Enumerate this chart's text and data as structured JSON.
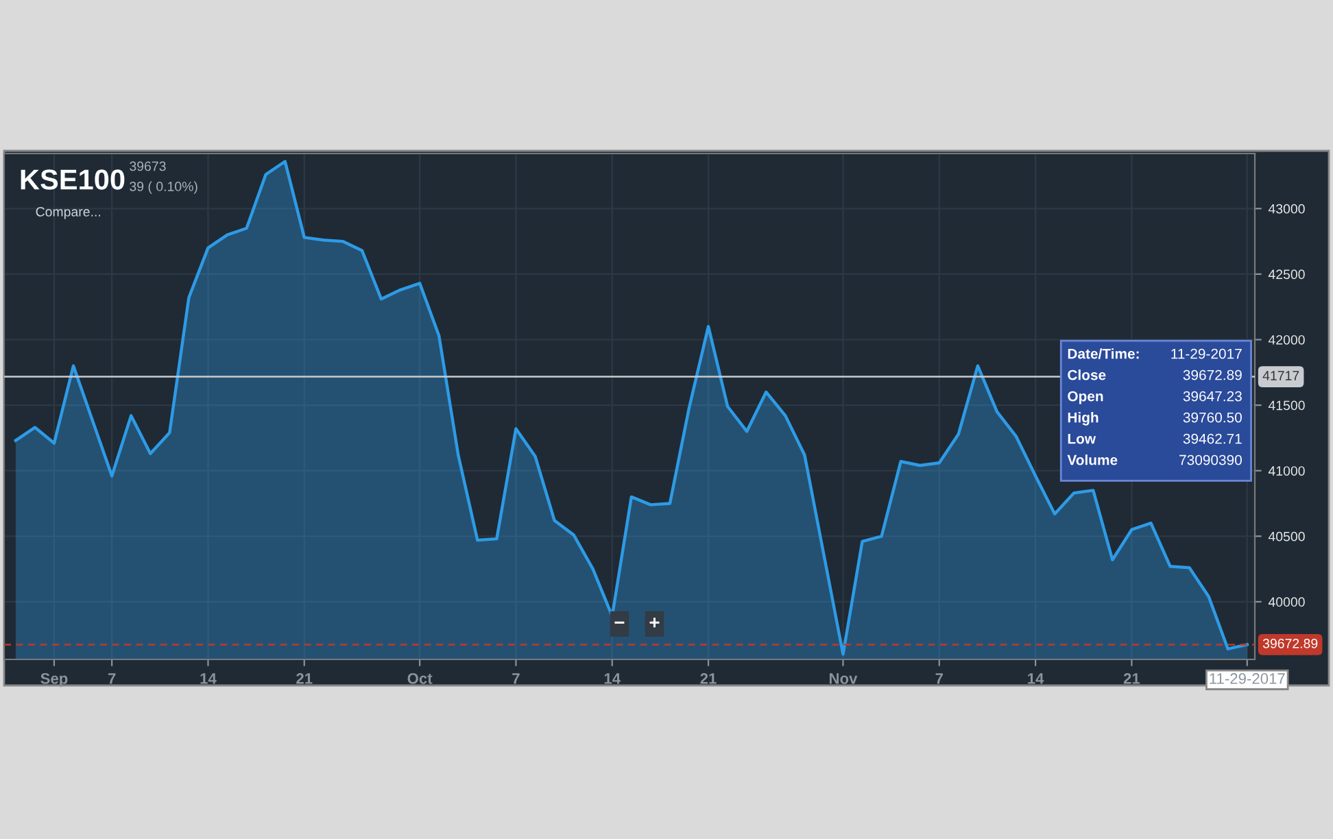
{
  "chart_data": {
    "type": "area",
    "title": "KSE100",
    "subtitle": "39673",
    "categories": [
      null,
      null,
      "Sep",
      null,
      null,
      "7",
      null,
      null,
      null,
      null,
      "14",
      null,
      null,
      null,
      null,
      "21",
      null,
      null,
      null,
      null,
      null,
      "Oct",
      null,
      null,
      null,
      null,
      "7",
      null,
      null,
      null,
      null,
      "14",
      null,
      null,
      null,
      null,
      "21",
      null,
      null,
      null,
      null,
      null,
      null,
      "Nov",
      null,
      null,
      null,
      null,
      "7",
      null,
      null,
      null,
      null,
      "14",
      null,
      null,
      null,
      null,
      "21",
      null,
      null,
      null,
      null,
      null,
      "11-29-2017"
    ],
    "series": [
      {
        "color": "#2e9be6",
        "values": [
          41230,
          41330,
          41210,
          41800,
          41380,
          40960,
          41420,
          41130,
          41290,
          42320,
          42700,
          42800,
          42850,
          43260,
          43360,
          42780,
          42760,
          42750,
          42680,
          42310,
          42380,
          42430,
          42030,
          41120,
          40470,
          40480,
          41320,
          41110,
          40620,
          40510,
          40250,
          39890,
          40800,
          40740,
          40750,
          41480,
          42100,
          41490,
          41300,
          41600,
          41420,
          41120,
          40360,
          39600,
          40460,
          40500,
          41070,
          41040,
          41060,
          41280,
          41800,
          41450,
          41260,
          40960,
          40670,
          40830,
          40850,
          40320,
          40550,
          40600,
          40270,
          40260,
          40040,
          39640,
          39672.89
        ]
      }
    ],
    "ylim": [
      39560,
      43420
    ],
    "yticks": [
      40000,
      40500,
      41000,
      41500,
      42000,
      42500,
      43000
    ],
    "grid": true,
    "legend": false,
    "ref_lines": [
      {
        "axis": "y",
        "value": 41717,
        "label": "41717",
        "color": "#c8ccd0",
        "line_style": "solid"
      },
      {
        "axis": "y",
        "value": 39672.89,
        "label": "39672.89",
        "color": "#c0392b",
        "line_style": "dashed"
      }
    ],
    "annotations": [
      "39 ( 0.10%)",
      "Compare...",
      "−",
      "+",
      "Date/Time:",
      "11-29-2017",
      "Close",
      "39672.89",
      "Open",
      "39647.23",
      "High",
      "39760.50",
      "Low",
      "39462.71",
      "Volume",
      "73090390"
    ]
  }
}
